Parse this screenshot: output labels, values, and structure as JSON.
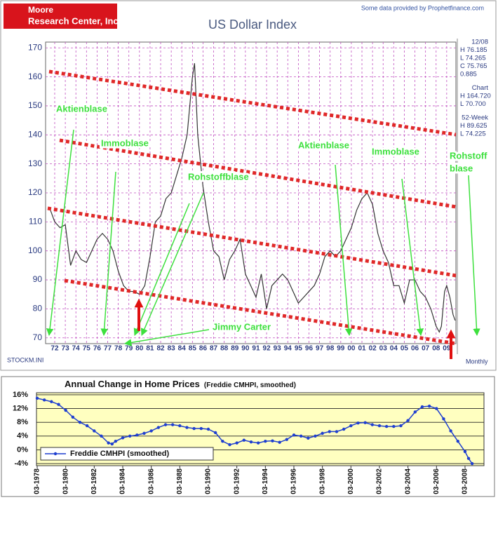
{
  "chart_data": [
    {
      "type": "line",
      "title": "US Dollar Index",
      "logo": [
        "Moore",
        "Research Center, Inc."
      ],
      "source": "Some data provided by Prophetfinance.com",
      "stats": [
        "12/08",
        "H 76.185",
        "L 74.265",
        "C 75.765",
        "0.885",
        "Chart",
        "H 164.720",
        "L 70.700",
        "52-Week",
        "H 89.625",
        "L 74.225"
      ],
      "footer_left": "STOCKM.INI",
      "footer_right": "Monthly",
      "annotations": [
        "Aktienblase",
        "Immoblase",
        "Rohstoffblase",
        "Jimmy Carter",
        "Aktienblase",
        "Immoblase",
        "Rohstoff",
        "blase"
      ],
      "color": "#333333",
      "grid": true,
      "x": [
        1971.5,
        1972,
        1972.5,
        1973,
        1973.5,
        1974,
        1974.5,
        1975,
        1975.5,
        1976,
        1976.5,
        1977,
        1977.5,
        1978,
        1978.5,
        1979,
        1979.5,
        1980,
        1980.5,
        1981,
        1981.5,
        1982,
        1982.5,
        1983,
        1983.5,
        1984,
        1984.5,
        1985,
        1985.2,
        1985.5,
        1986,
        1986.5,
        1987,
        1987.5,
        1988,
        1988.5,
        1989,
        1989.5,
        1990,
        1990.5,
        1991,
        1991.5,
        1992,
        1992.5,
        1993,
        1993.5,
        1994,
        1994.5,
        1995,
        1995.5,
        1996,
        1996.5,
        1997,
        1997.5,
        1998,
        1998.5,
        1999,
        1999.5,
        2000,
        2000.5,
        2001,
        2001.5,
        2002,
        2002.5,
        2003,
        2003.5,
        2004,
        2004.5,
        2005,
        2005.5,
        2006,
        2006.5,
        2007,
        2007.5,
        2008,
        2008.3,
        2008.5,
        2008.8,
        2009,
        2009.3,
        2009.6,
        2009.8
      ],
      "values": [
        115,
        110,
        108,
        109,
        95,
        100,
        97,
        96,
        100,
        104,
        106,
        104,
        100,
        93,
        88,
        86,
        86,
        85,
        88,
        98,
        110,
        112,
        118,
        120,
        126,
        132,
        140,
        160,
        164.7,
        140,
        122,
        110,
        100,
        98,
        90,
        97,
        100,
        104,
        92,
        88,
        84,
        92,
        80,
        88,
        90,
        92,
        90,
        86,
        82,
        84,
        86,
        88,
        92,
        98,
        100,
        98,
        100,
        104,
        108,
        114,
        118,
        120,
        116,
        106,
        100,
        96,
        88,
        88,
        82,
        90,
        90,
        86,
        84,
        80,
        74,
        72,
        74,
        86,
        88,
        84,
        78,
        76
      ],
      "xlim": [
        1971.14,
        2009.87
      ],
      "xticks": [
        {
          "value": 1972,
          "label": "72"
        },
        {
          "value": 1973,
          "label": "73"
        },
        {
          "value": 1974,
          "label": "74"
        },
        {
          "value": 1975,
          "label": "75"
        },
        {
          "value": 1976,
          "label": "76"
        },
        {
          "value": 1977,
          "label": "77"
        },
        {
          "value": 1978,
          "label": "78"
        },
        {
          "value": 1979,
          "label": "79"
        },
        {
          "value": 1980,
          "label": "80"
        },
        {
          "value": 1981,
          "label": "81"
        },
        {
          "value": 1982,
          "label": "82"
        },
        {
          "value": 1983,
          "label": "83"
        },
        {
          "value": 1984,
          "label": "84"
        },
        {
          "value": 1985,
          "label": "85"
        },
        {
          "value": 1986,
          "label": "86"
        },
        {
          "value": 1987,
          "label": "87"
        },
        {
          "value": 1988,
          "label": "88"
        },
        {
          "value": 1989,
          "label": "89"
        },
        {
          "value": 1990,
          "label": "90"
        },
        {
          "value": 1991,
          "label": "91"
        },
        {
          "value": 1992,
          "label": "92"
        },
        {
          "value": 1993,
          "label": "93"
        },
        {
          "value": 1994,
          "label": "94"
        },
        {
          "value": 1995,
          "label": "95"
        },
        {
          "value": 1996,
          "label": "96"
        },
        {
          "value": 1997,
          "label": "97"
        },
        {
          "value": 1998,
          "label": "98"
        },
        {
          "value": 1999,
          "label": "99"
        },
        {
          "value": 2000,
          "label": "00"
        },
        {
          "value": 2001,
          "label": "01"
        },
        {
          "value": 2002,
          "label": "02"
        },
        {
          "value": 2003,
          "label": "03"
        },
        {
          "value": 2004,
          "label": "04"
        },
        {
          "value": 2005,
          "label": "05"
        },
        {
          "value": 2006,
          "label": "06"
        },
        {
          "value": 2007,
          "label": "07"
        },
        {
          "value": 2008,
          "label": "08"
        },
        {
          "value": 2009,
          "label": "09"
        }
      ],
      "ylim": [
        68,
        172
      ],
      "yticks": [
        70,
        80,
        90,
        100,
        110,
        120,
        130,
        140,
        150,
        160,
        170
      ]
    },
    {
      "type": "line",
      "title": "Annual Change in Home Prices",
      "subtitle": "(Freddie CMHPI, smoothed)",
      "markers": true,
      "grid": true,
      "legend": "bottom-left",
      "x": [
        1978.17,
        1978.67,
        1979.17,
        1979.67,
        1980.17,
        1980.67,
        1981.17,
        1981.67,
        1982.17,
        1982.67,
        1983.17,
        1983.42,
        1983.67,
        1984.17,
        1984.67,
        1985.17,
        1985.67,
        1986.17,
        1986.67,
        1987.17,
        1987.67,
        1988.17,
        1988.67,
        1989.17,
        1989.67,
        1990.17,
        1990.67,
        1991.17,
        1991.67,
        1992.17,
        1992.67,
        1993.17,
        1993.67,
        1994.17,
        1994.67,
        1995.17,
        1995.67,
        1996.17,
        1996.67,
        1997.17,
        1997.67,
        1998.17,
        1998.67,
        1999.17,
        1999.67,
        2000.17,
        2000.67,
        2001.17,
        2001.67,
        2002.17,
        2002.67,
        2003.17,
        2003.67,
        2004.17,
        2004.67,
        2005.17,
        2005.67,
        2006.17,
        2006.67,
        2007.17,
        2007.67,
        2008.17,
        2008.42,
        2008.67
      ],
      "series": [
        {
          "name": "Freddie CMHPI (smoothed)",
          "color": "#1f3fd0",
          "values": [
            15,
            14.5,
            14,
            13.2,
            11.5,
            9.5,
            8,
            7,
            5.5,
            4,
            2,
            1.7,
            2.5,
            3.5,
            4,
            4.3,
            4.8,
            5.5,
            6.5,
            7.3,
            7.3,
            7,
            6.5,
            6.2,
            6.2,
            6,
            5,
            2.5,
            1.5,
            2,
            2.8,
            2.3,
            2,
            2.5,
            2.6,
            2.2,
            3,
            4.3,
            4,
            3.4,
            4,
            4.8,
            5.3,
            5.3,
            6,
            7,
            7.8,
            7.9,
            7.3,
            7,
            6.8,
            6.8,
            7,
            8.5,
            11,
            12.5,
            12.7,
            12,
            9,
            5.5,
            2.5,
            -0.5,
            -2.5,
            -4
          ]
        }
      ],
      "xlim": [
        1978.12,
        2009.5
      ],
      "xticks": [
        {
          "value": 1978.17,
          "label": "03-1978"
        },
        {
          "value": 1980.17,
          "label": "03-1980"
        },
        {
          "value": 1982.17,
          "label": "03-1982"
        },
        {
          "value": 1984.17,
          "label": "03-1984"
        },
        {
          "value": 1986.17,
          "label": "03-1986"
        },
        {
          "value": 1988.17,
          "label": "03-1988"
        },
        {
          "value": 1990.17,
          "label": "03-1990"
        },
        {
          "value": 1992.17,
          "label": "03-1992"
        },
        {
          "value": 1994.17,
          "label": "03-1994"
        },
        {
          "value": 1996.17,
          "label": "03-1996"
        },
        {
          "value": 1998.17,
          "label": "03-1998"
        },
        {
          "value": 2000.17,
          "label": "03-2000"
        },
        {
          "value": 2002.17,
          "label": "03-2002"
        },
        {
          "value": 2004.17,
          "label": "03-2004"
        },
        {
          "value": 2006.17,
          "label": "03-2006"
        },
        {
          "value": 2008.17,
          "label": "03-2008"
        }
      ],
      "ylim": [
        -4.6,
        16.6
      ],
      "yticks": [
        {
          "value": -4,
          "label": "-4%"
        },
        {
          "value": 0,
          "label": "0%"
        },
        {
          "value": 4,
          "label": "4%"
        },
        {
          "value": 8,
          "label": "8%"
        },
        {
          "value": 12,
          "label": "12%"
        },
        {
          "value": 16,
          "label": "16%"
        }
      ]
    }
  ]
}
